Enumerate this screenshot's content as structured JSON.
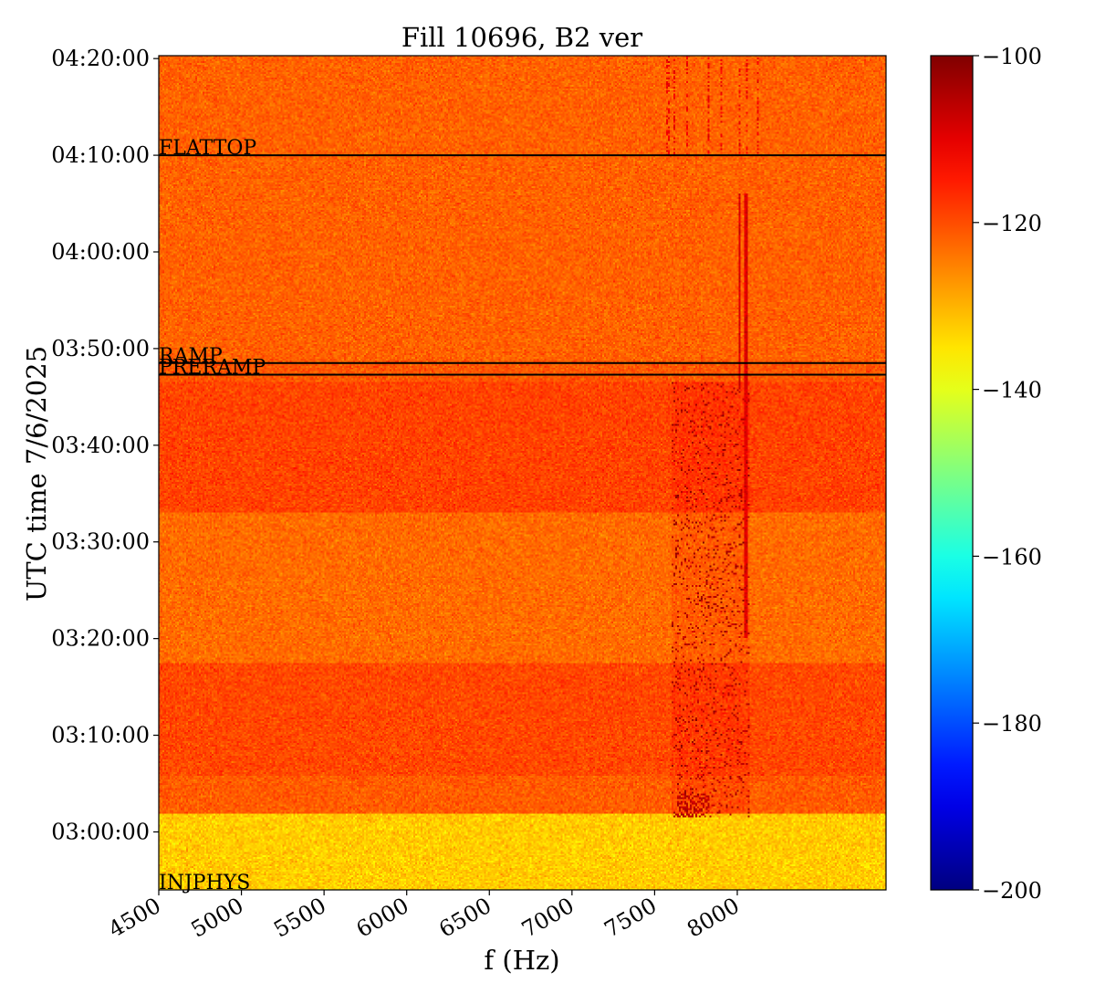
{
  "chart_data": {
    "type": "heatmap",
    "title": "Fill 10696, B2 ver",
    "xlabel": "f (Hz)",
    "ylabel": "UTC time 7/6/2025",
    "xlim": [
      4500,
      8900
    ],
    "ylim_minutes_after_0300": [
      -6.0,
      80.3
    ],
    "x_ticks": [
      4500,
      5000,
      5500,
      6000,
      6500,
      7000,
      7500,
      8000
    ],
    "x_tick_labels": [
      "4500",
      "5000",
      "5500",
      "6000",
      "6500",
      "7000",
      "7500",
      "8000"
    ],
    "y_ticks_minutes_after_0300": [
      0,
      10,
      20,
      30,
      40,
      50,
      60,
      70,
      80
    ],
    "y_tick_labels": [
      "03:00:00",
      "03:10:00",
      "03:20:00",
      "03:30:00",
      "03:40:00",
      "03:50:00",
      "04:00:00",
      "04:10:00",
      "04:20:00"
    ],
    "colorbar": {
      "colormap": "jet",
      "range": [
        -200,
        -100
      ],
      "ticks": [
        -100,
        -120,
        -140,
        -160,
        -180,
        -200
      ],
      "tick_labels": [
        "−100",
        "−120",
        "−140",
        "−160",
        "−180",
        "−200"
      ]
    },
    "annotations": [
      {
        "label": "FLATTOP",
        "minutes_after_0300": 70.0
      },
      {
        "label": "RAMP",
        "minutes_after_0300": 48.5
      },
      {
        "label": "PRERAMP",
        "minutes_after_0300": 47.3
      },
      {
        "label": "INJPHYS",
        "minutes_after_0300": -6.0
      }
    ],
    "grid": false,
    "legend": "none"
  }
}
